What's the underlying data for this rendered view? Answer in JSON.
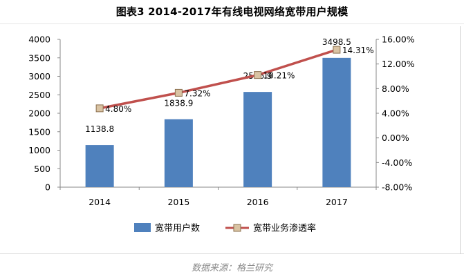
{
  "chart_data": {
    "type": "bar+line",
    "title": "图表3 2014-2017年有线电视网络宽带用户规模",
    "categories": [
      "2014",
      "2015",
      "2016",
      "2017"
    ],
    "series": [
      {
        "name": "宽带用户数",
        "type": "bar",
        "axis": "left",
        "values": [
          1138.8,
          1838.9,
          2576.9,
          3498.5
        ],
        "labels": [
          "1138.8",
          "1838.9",
          "2576.9",
          "3498.5"
        ],
        "color": "#4f81bd"
      },
      {
        "name": "宽带业务渗透率",
        "type": "line",
        "axis": "right",
        "values": [
          4.8,
          7.32,
          10.21,
          14.31
        ],
        "labels": [
          "4.80%",
          "7.32%",
          "10.21%",
          "14.31%"
        ],
        "color": "#c0504d",
        "marker_color": "#d9c3a3"
      }
    ],
    "left_axis": {
      "ylim": [
        0,
        4000
      ],
      "ticks": [
        "0",
        "500",
        "1000",
        "1500",
        "2000",
        "2500",
        "3000",
        "3500",
        "4000"
      ]
    },
    "right_axis": {
      "ylim": [
        -8,
        16
      ],
      "ticks": [
        "-8.00%",
        "-4.00%",
        "0.00%",
        "4.00%",
        "8.00%",
        "12.00%",
        "16.00%"
      ]
    },
    "grid": false,
    "legend": "bottom"
  },
  "source": "数据来源：格兰研究"
}
